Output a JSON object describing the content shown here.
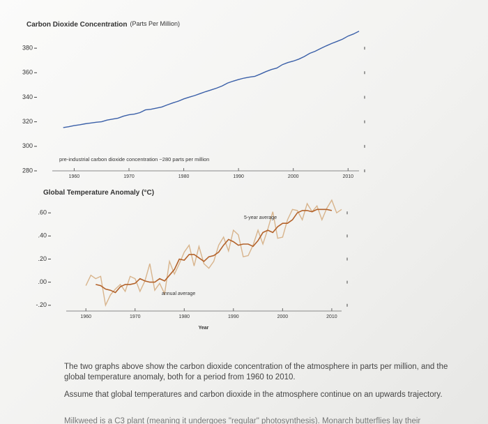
{
  "chart_data": [
    {
      "type": "line",
      "title": "Carbon Dioxide Concentration",
      "subtitle": "(Parts Per Million)",
      "annotation": "pre-industrial carbon dioxide concentration ~280 parts per million",
      "x": [
        1958,
        1959,
        1960,
        1961,
        1962,
        1963,
        1964,
        1965,
        1966,
        1967,
        1968,
        1969,
        1970,
        1971,
        1972,
        1973,
        1974,
        1975,
        1976,
        1977,
        1978,
        1979,
        1980,
        1981,
        1982,
        1983,
        1984,
        1985,
        1986,
        1987,
        1988,
        1989,
        1990,
        1991,
        1992,
        1993,
        1994,
        1995,
        1996,
        1997,
        1998,
        1999,
        2000,
        2001,
        2002,
        2003,
        2004,
        2005,
        2006,
        2007,
        2008,
        2009,
        2010,
        2011,
        2012
      ],
      "series": [
        {
          "name": null,
          "color": "#3a5fa8",
          "values": [
            315.3,
            316,
            316.9,
            317.6,
            318.4,
            319,
            319.6,
            320,
            321.4,
            322.2,
            323,
            324.6,
            325.7,
            326.3,
            327.5,
            329.7,
            330.2,
            331.1,
            332.1,
            333.8,
            335.4,
            336.8,
            338.7,
            340.1,
            341.4,
            343,
            344.6,
            346,
            347.4,
            349.2,
            351.6,
            353.1,
            354.4,
            355.6,
            356.4,
            357.1,
            358.9,
            360.9,
            362.6,
            363.8,
            366.6,
            368.3,
            369.5,
            371.1,
            373.2,
            375.8,
            377.5,
            379.8,
            381.9,
            383.8,
            385.6,
            387.4,
            389.9,
            391.6,
            393.8
          ]
        }
      ],
      "xlim": [
        1956,
        2012
      ],
      "xticks": [
        1960,
        1970,
        1980,
        1990,
        2000,
        2010
      ],
      "ylim": [
        280,
        392
      ],
      "yticks": [
        280,
        300,
        320,
        340,
        360,
        380
      ]
    },
    {
      "type": "line",
      "title": "Global Temperature Anomaly (°C)",
      "xlabel": "Year",
      "x": [
        1960,
        1961,
        1962,
        1963,
        1964,
        1965,
        1966,
        1967,
        1968,
        1969,
        1970,
        1971,
        1972,
        1973,
        1974,
        1975,
        1976,
        1977,
        1978,
        1979,
        1980,
        1981,
        1982,
        1983,
        1984,
        1985,
        1986,
        1987,
        1988,
        1989,
        1990,
        1991,
        1992,
        1993,
        1994,
        1995,
        1996,
        1997,
        1998,
        1999,
        2000,
        2001,
        2002,
        2003,
        2004,
        2005,
        2006,
        2007,
        2008,
        2009,
        2010,
        2011,
        2012
      ],
      "series": [
        {
          "name": "annual average",
          "color": "#d8b48c",
          "values": [
            -0.03,
            0.06,
            0.03,
            0.05,
            -0.2,
            -0.11,
            -0.06,
            -0.02,
            -0.08,
            0.05,
            0.03,
            -0.08,
            0.01,
            0.16,
            -0.07,
            -0.01,
            -0.1,
            0.18,
            0.07,
            0.16,
            0.26,
            0.32,
            0.14,
            0.31,
            0.16,
            0.12,
            0.18,
            0.32,
            0.39,
            0.27,
            0.45,
            0.41,
            0.22,
            0.23,
            0.32,
            0.45,
            0.33,
            0.46,
            0.61,
            0.38,
            0.39,
            0.54,
            0.63,
            0.62,
            0.54,
            0.68,
            0.61,
            0.66,
            0.54,
            0.64,
            0.71,
            0.6,
            0.63
          ]
        },
        {
          "name": "5-year average",
          "color": "#b3622a",
          "values": [
            null,
            null,
            -0.02,
            -0.03,
            -0.06,
            -0.07,
            -0.09,
            -0.04,
            -0.02,
            -0.02,
            -0.01,
            0.03,
            0.01,
            0,
            0,
            0.03,
            0.01,
            0.06,
            0.11,
            0.2,
            0.19,
            0.24,
            0.24,
            0.21,
            0.18,
            0.22,
            0.23,
            0.26,
            0.32,
            0.37,
            0.35,
            0.32,
            0.33,
            0.33,
            0.31,
            0.36,
            0.43,
            0.45,
            0.43,
            0.48,
            0.51,
            0.51,
            0.54,
            0.6,
            0.62,
            0.62,
            0.61,
            0.63,
            0.63,
            0.63,
            0.62,
            null,
            null
          ]
        }
      ],
      "xlim": [
        1956,
        2012
      ],
      "xticks": [
        1960,
        1970,
        1980,
        1990,
        2000,
        2010
      ],
      "ylim": [
        -0.25,
        0.68
      ],
      "yticks": [
        {
          "value": -0.2,
          "label": "-.20"
        },
        {
          "value": 0,
          "label": ".00"
        },
        {
          "value": 0.2,
          "label": ".20"
        },
        {
          "value": 0.4,
          "label": ".40"
        },
        {
          "value": 0.6,
          "label": ".60"
        }
      ]
    }
  ],
  "text": {
    "paragraphs": [
      "The two graphs above show the carbon dioxide concentration of the atmosphere in parts per million, and the global temperature anomaly, both for a period from 1960 to 2010.",
      "Assume that global temperatures and carbon dioxide in the atmosphere continue on an upwards trajectory.",
      "Milkweed is a C3 plant (meaning it undergoes \"regular\" photosynthesis). Monarch butterflies lay their"
    ]
  }
}
